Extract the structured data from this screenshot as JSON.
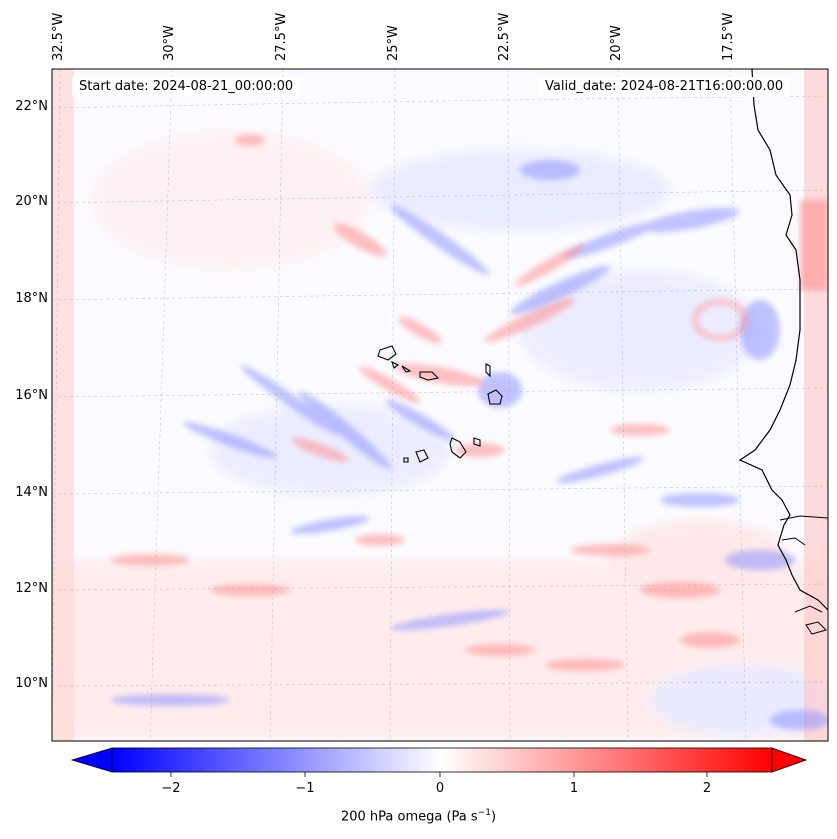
{
  "map": {
    "start_date": "Start date: 2024-08-21_00:00:00",
    "valid_date": "Valid_date: 2024-08-21T16:00:00.00",
    "lon_labels": [
      "32.5°W",
      "30°W",
      "27.5°W",
      "25°W",
      "22.5°W",
      "20°W",
      "17.5°W"
    ],
    "lat_labels": [
      "22°N",
      "20°N",
      "18°N",
      "16°N",
      "14°N",
      "12°N",
      "10°N"
    ],
    "colormap": {
      "negative": "#0000ff",
      "neutral": "#ffffff",
      "positive": "#ff0000"
    },
    "coastline_color": "#000000"
  },
  "colorbar": {
    "ticks": [
      "−2",
      "−1",
      "0",
      "1",
      "2"
    ],
    "label_main": "200 hPa omega (Pa s",
    "label_sup": "−1",
    "label_end": ")"
  }
}
